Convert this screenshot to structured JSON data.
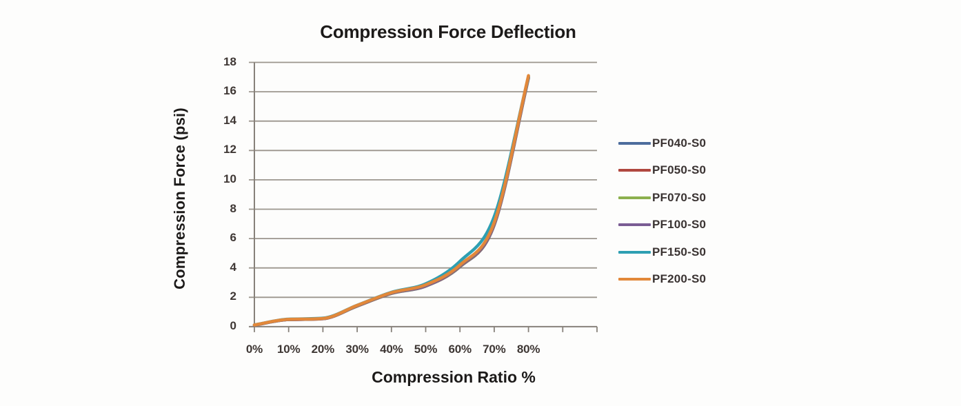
{
  "chart_data": {
    "type": "line",
    "title": "Compression Force Deflection",
    "xlabel": "Compression Ratio %",
    "ylabel": "Compression Force  (psi)",
    "x_categories": [
      "0%",
      "10%",
      "20%",
      "30%",
      "40%",
      "50%",
      "60%",
      "70%",
      "80%"
    ],
    "x_tick_count_total": 11,
    "ylim": [
      0,
      18
    ],
    "ytick_step": 2,
    "ytick_labels": [
      "18",
      "16",
      "14",
      "12",
      "10",
      "8",
      "6",
      "4",
      "2",
      "0"
    ],
    "grid": "horizontal",
    "legend_position": "right",
    "line_smoothing": true,
    "axis_color": "#87817a",
    "gridline_color": "#9b958d",
    "series": [
      {
        "name": "PF040-S0",
        "color": "#4d6d9d",
        "values": [
          0.1,
          0.48,
          0.54,
          1.4,
          2.26,
          2.76,
          4.08,
          6.92,
          16.92
        ]
      },
      {
        "name": "PF050-S0",
        "color": "#b0473f",
        "values": [
          0.1,
          0.48,
          0.54,
          1.41,
          2.27,
          2.77,
          4.1,
          6.95,
          16.95
        ]
      },
      {
        "name": "PF070-S0",
        "color": "#8cb04e",
        "values": [
          0.11,
          0.49,
          0.55,
          1.42,
          2.28,
          2.78,
          4.12,
          6.98,
          16.98
        ]
      },
      {
        "name": "PF100-S0",
        "color": "#7a5c94",
        "values": [
          0.11,
          0.49,
          0.55,
          1.43,
          2.29,
          2.79,
          4.14,
          7.0,
          17.0
        ]
      },
      {
        "name": "PF150-S0",
        "color": "#2e9fb2",
        "values": [
          0.12,
          0.51,
          0.58,
          1.46,
          2.34,
          2.92,
          4.45,
          7.5,
          17.05
        ]
      },
      {
        "name": "PF200-S0",
        "color": "#e2883a",
        "values": [
          0.12,
          0.5,
          0.56,
          1.45,
          2.32,
          2.85,
          4.2,
          7.1,
          17.1
        ]
      }
    ]
  }
}
